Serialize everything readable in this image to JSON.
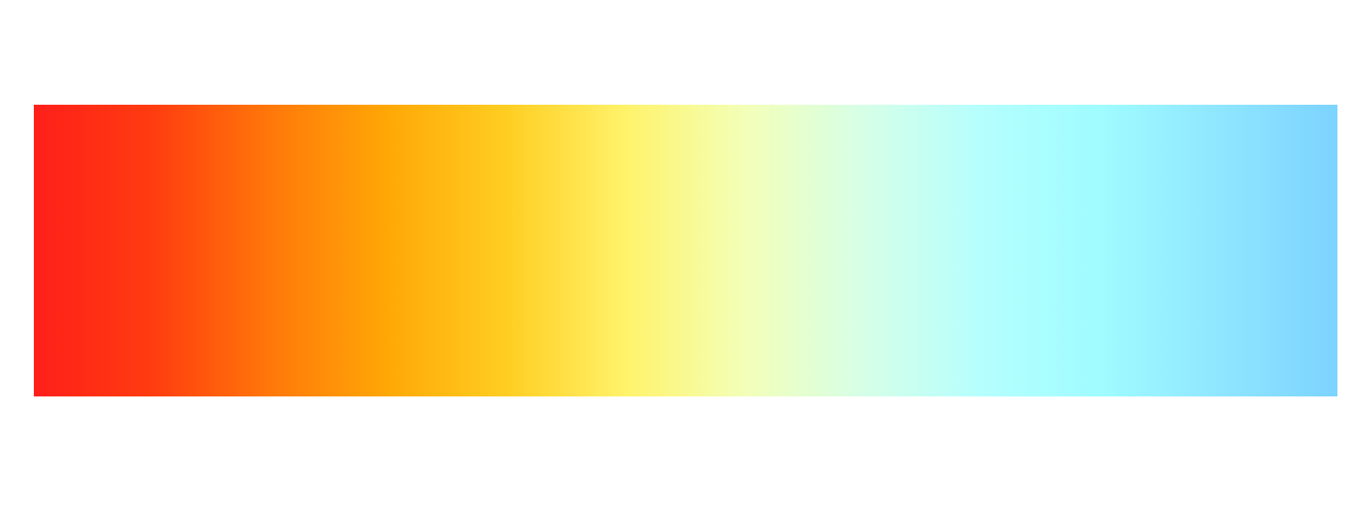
{
  "gradient": {
    "stops": [
      "#ff1f1a",
      "#ff3c10",
      "#ff780a",
      "#ffa806",
      "#ffce22",
      "#fff36b",
      "#f3ffb8",
      "#d6ffe7",
      "#b5fffe",
      "#9ffcff",
      "#8fe6ff",
      "#7cd3ff"
    ]
  }
}
